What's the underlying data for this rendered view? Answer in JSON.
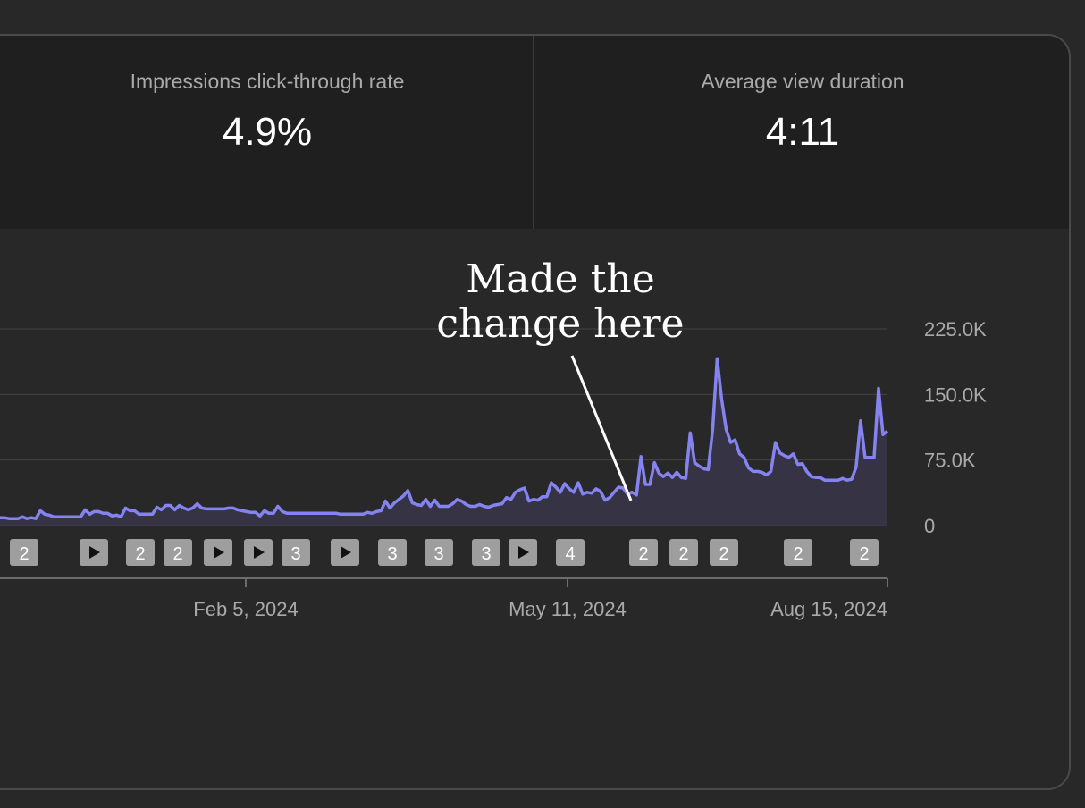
{
  "metrics": [
    {
      "label": "Impressions click-through rate",
      "value": "4.9%"
    },
    {
      "label": "Average view duration",
      "value": "4:11"
    }
  ],
  "annotation": {
    "line1": "Made the",
    "line2": "change here"
  },
  "colors": {
    "line": "#8583f0",
    "area": "#363446",
    "grid": "#444444",
    "badge": "#9e9e9e",
    "text_muted": "#aaaaaa"
  },
  "chart_data": {
    "type": "area",
    "ylim": [
      0,
      225000
    ],
    "y_ticks": [
      {
        "value": 0,
        "label": "0"
      },
      {
        "value": 75000,
        "label": "75.0K"
      },
      {
        "value": 150000,
        "label": "150.0K"
      },
      {
        "value": 225000,
        "label": "225.0K"
      }
    ],
    "x_ticks": [
      "Feb 5, 2024",
      "May 11, 2024",
      "Aug 15, 2024"
    ],
    "series": [
      {
        "values": [
          9000,
          9000,
          8000,
          8000,
          8000,
          10000,
          8000,
          9000,
          8000,
          17000,
          13000,
          12000,
          10000,
          10000,
          10000,
          10000,
          10000,
          10000,
          10000,
          18000,
          13000,
          16000,
          16000,
          14000,
          14000,
          11000,
          12000,
          10000,
          20000,
          17000,
          17000,
          13000,
          13000,
          13000,
          13000,
          21000,
          18000,
          23000,
          23000,
          18000,
          23000,
          20000,
          18000,
          20000,
          25000,
          20000,
          19000,
          19000,
          19000,
          19000,
          19000,
          20000,
          20000,
          18000,
          17000,
          16000,
          15000,
          15000,
          11000,
          17000,
          14000,
          14000,
          22000,
          16000,
          14000,
          14000,
          14000,
          14000,
          14000,
          14000,
          14000,
          14000,
          14000,
          14000,
          14000,
          14000,
          13000,
          13000,
          13000,
          13000,
          13000,
          13000,
          15000,
          14000,
          16000,
          17000,
          28000,
          20000,
          26000,
          30000,
          34000,
          40000,
          26000,
          24000,
          23000,
          30000,
          22000,
          29000,
          22000,
          22000,
          22000,
          25000,
          30000,
          28000,
          24000,
          22000,
          22000,
          24000,
          22000,
          21000,
          23000,
          24000,
          25000,
          32000,
          30000,
          38000,
          41000,
          43000,
          28000,
          30000,
          29000,
          33000,
          33000,
          49000,
          44000,
          38000,
          48000,
          42000,
          38000,
          49000,
          36000,
          38000,
          37000,
          42000,
          39000,
          29000,
          32000,
          38000,
          44000,
          43000,
          36000,
          38000,
          35000,
          79000,
          47000,
          47000,
          72000,
          60000,
          56000,
          60000,
          55000,
          61000,
          55000,
          54000,
          106000,
          72000,
          68000,
          65000,
          64000,
          110000,
          191000,
          145000,
          110000,
          95000,
          98000,
          82000,
          78000,
          66000,
          62000,
          62000,
          61000,
          58000,
          62000,
          95000,
          83000,
          80000,
          78000,
          82000,
          70000,
          71000,
          62000,
          56000,
          55000,
          55000,
          52000,
          52000,
          52000,
          52000,
          54000,
          52000,
          53000,
          67000,
          120000,
          78000,
          78000,
          78000,
          157000,
          104000,
          108000
        ]
      }
    ],
    "video_markers": [
      "2",
      "play",
      "2",
      "2",
      "play",
      "play",
      "3",
      "play",
      "3",
      "3",
      "3",
      "play",
      "4",
      "2",
      "2",
      "2",
      "2",
      "2"
    ]
  }
}
